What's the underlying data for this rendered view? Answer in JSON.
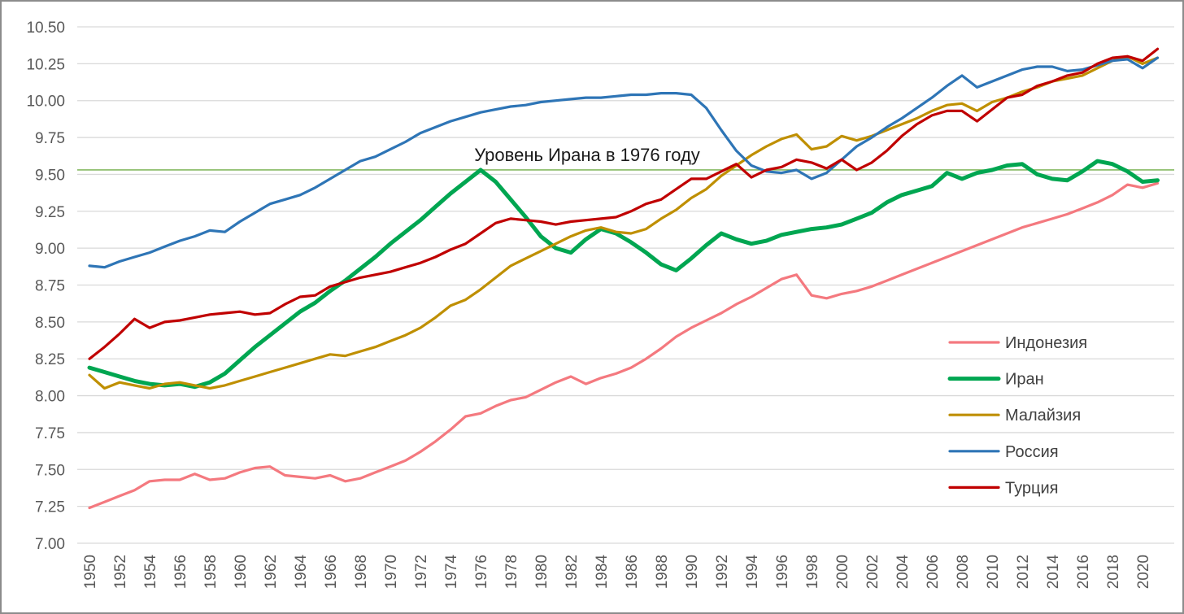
{
  "chart_data": {
    "type": "line",
    "title": "",
    "annotation": "Уровень Ирана в 1976 году",
    "reference_line": {
      "value": 9.53,
      "color": "#70AD47"
    },
    "grid": true,
    "legend_position": "middle-right",
    "y_axis": {
      "min": 7.0,
      "max": 10.5,
      "step": 0.25,
      "tick_labels": [
        "10.50",
        "10.25",
        "10.00",
        "9.75",
        "9.50",
        "9.25",
        "9.00",
        "8.75",
        "8.50",
        "8.25",
        "8.00",
        "7.75",
        "7.50",
        "7.25",
        "7.00"
      ]
    },
    "x_axis": {
      "start_year": 1950,
      "end_year": 2021,
      "tick_labels": [
        "1950",
        "1952",
        "1954",
        "1956",
        "1958",
        "1960",
        "1962",
        "1964",
        "1966",
        "1968",
        "1970",
        "1972",
        "1974",
        "1976",
        "1978",
        "1980",
        "1982",
        "1984",
        "1986",
        "1988",
        "1990",
        "1992",
        "1994",
        "1996",
        "1998",
        "2000",
        "2002",
        "2004",
        "2006",
        "2008",
        "2010",
        "2012",
        "2014",
        "2016",
        "2018",
        "2020"
      ]
    },
    "years": [
      1950,
      1951,
      1952,
      1953,
      1954,
      1955,
      1956,
      1957,
      1958,
      1959,
      1960,
      1961,
      1962,
      1963,
      1964,
      1965,
      1966,
      1967,
      1968,
      1969,
      1970,
      1971,
      1972,
      1973,
      1974,
      1975,
      1976,
      1977,
      1978,
      1979,
      1980,
      1981,
      1982,
      1983,
      1984,
      1985,
      1986,
      1987,
      1988,
      1989,
      1990,
      1991,
      1992,
      1993,
      1994,
      1995,
      1996,
      1997,
      1998,
      1999,
      2000,
      2001,
      2002,
      2003,
      2004,
      2005,
      2006,
      2007,
      2008,
      2009,
      2010,
      2011,
      2012,
      2013,
      2014,
      2015,
      2016,
      2017,
      2018,
      2019,
      2020,
      2021
    ],
    "series": [
      {
        "name": "Индонезия",
        "color": "#F4797F",
        "width": 3.2,
        "values": [
          7.24,
          7.28,
          7.32,
          7.36,
          7.42,
          7.43,
          7.43,
          7.47,
          7.43,
          7.44,
          7.48,
          7.51,
          7.52,
          7.46,
          7.45,
          7.44,
          7.46,
          7.42,
          7.44,
          7.48,
          7.52,
          7.56,
          7.62,
          7.69,
          7.77,
          7.86,
          7.88,
          7.93,
          7.97,
          7.99,
          8.04,
          8.09,
          8.13,
          8.08,
          8.12,
          8.15,
          8.19,
          8.25,
          8.32,
          8.4,
          8.46,
          8.51,
          8.56,
          8.62,
          8.67,
          8.73,
          8.79,
          8.82,
          8.68,
          8.66,
          8.69,
          8.71,
          8.74,
          8.78,
          8.82,
          8.86,
          8.9,
          8.94,
          8.98,
          9.02,
          9.06,
          9.1,
          9.14,
          9.17,
          9.2,
          9.23,
          9.27,
          9.31,
          9.36,
          9.43,
          9.41,
          9.44
        ]
      },
      {
        "name": "Иран",
        "color": "#00A651",
        "width": 5,
        "values": [
          8.19,
          8.16,
          8.13,
          8.1,
          8.08,
          8.07,
          8.08,
          8.06,
          8.09,
          8.15,
          8.24,
          8.33,
          8.41,
          8.49,
          8.57,
          8.63,
          8.71,
          8.78,
          8.86,
          8.94,
          9.03,
          9.11,
          9.19,
          9.28,
          9.37,
          9.45,
          9.53,
          9.45,
          9.33,
          9.21,
          9.08,
          9.0,
          8.97,
          9.06,
          9.13,
          9.1,
          9.04,
          8.97,
          8.89,
          8.85,
          8.93,
          9.02,
          9.1,
          9.06,
          9.03,
          9.05,
          9.09,
          9.11,
          9.13,
          9.14,
          9.16,
          9.2,
          9.24,
          9.31,
          9.36,
          9.39,
          9.42,
          9.51,
          9.47,
          9.51,
          9.53,
          9.56,
          9.57,
          9.5,
          9.47,
          9.46,
          9.52,
          9.59,
          9.57,
          9.52,
          9.45,
          9.46
        ]
      },
      {
        "name": "Малайзия",
        "color": "#BF8F00",
        "width": 3.2,
        "values": [
          8.14,
          8.05,
          8.09,
          8.07,
          8.05,
          8.08,
          8.09,
          8.07,
          8.05,
          8.07,
          8.1,
          8.13,
          8.16,
          8.19,
          8.22,
          8.25,
          8.28,
          8.27,
          8.3,
          8.33,
          8.37,
          8.41,
          8.46,
          8.53,
          8.61,
          8.65,
          8.72,
          8.8,
          8.88,
          8.93,
          8.98,
          9.03,
          9.08,
          9.12,
          9.14,
          9.11,
          9.1,
          9.13,
          9.2,
          9.26,
          9.34,
          9.4,
          9.49,
          9.56,
          9.63,
          9.69,
          9.74,
          9.77,
          9.67,
          9.69,
          9.76,
          9.73,
          9.76,
          9.8,
          9.84,
          9.88,
          9.93,
          9.97,
          9.98,
          9.93,
          9.99,
          10.02,
          10.06,
          10.09,
          10.13,
          10.15,
          10.17,
          10.22,
          10.27,
          10.3,
          10.25,
          10.29
        ]
      },
      {
        "name": "Россия",
        "color": "#2E75B6",
        "width": 3.2,
        "values": [
          8.88,
          8.87,
          8.91,
          8.94,
          8.97,
          9.01,
          9.05,
          9.08,
          9.12,
          9.11,
          9.18,
          9.24,
          9.3,
          9.33,
          9.36,
          9.41,
          9.47,
          9.53,
          9.59,
          9.62,
          9.67,
          9.72,
          9.78,
          9.82,
          9.86,
          9.89,
          9.92,
          9.94,
          9.96,
          9.97,
          9.99,
          10.0,
          10.01,
          10.02,
          10.02,
          10.03,
          10.04,
          10.04,
          10.05,
          10.05,
          10.04,
          9.95,
          9.8,
          9.66,
          9.56,
          9.52,
          9.51,
          9.53,
          9.47,
          9.51,
          9.6,
          9.69,
          9.75,
          9.82,
          9.88,
          9.95,
          10.02,
          10.1,
          10.17,
          10.09,
          10.13,
          10.17,
          10.21,
          10.23,
          10.23,
          10.2,
          10.21,
          10.24,
          10.27,
          10.28,
          10.22,
          10.29
        ]
      },
      {
        "name": "Турция",
        "color": "#C00000",
        "width": 3.2,
        "values": [
          8.25,
          8.33,
          8.42,
          8.52,
          8.46,
          8.5,
          8.51,
          8.53,
          8.55,
          8.56,
          8.57,
          8.55,
          8.56,
          8.62,
          8.67,
          8.68,
          8.74,
          8.77,
          8.8,
          8.82,
          8.84,
          8.87,
          8.9,
          8.94,
          8.99,
          9.03,
          9.1,
          9.17,
          9.2,
          9.19,
          9.18,
          9.16,
          9.18,
          9.19,
          9.2,
          9.21,
          9.25,
          9.3,
          9.33,
          9.4,
          9.47,
          9.47,
          9.52,
          9.57,
          9.48,
          9.53,
          9.55,
          9.6,
          9.58,
          9.54,
          9.6,
          9.53,
          9.58,
          9.66,
          9.76,
          9.84,
          9.9,
          9.93,
          9.93,
          9.86,
          9.94,
          10.02,
          10.04,
          10.1,
          10.13,
          10.17,
          10.19,
          10.25,
          10.29,
          10.3,
          10.27,
          10.35
        ]
      }
    ],
    "colors": {
      "gridline": "#D9D9D9",
      "tick_label": "#595959",
      "legend_text": "#404040",
      "annotation_text": "#1A1A1A",
      "background": "#FFFFFF",
      "border": "#8C8C8C"
    }
  }
}
